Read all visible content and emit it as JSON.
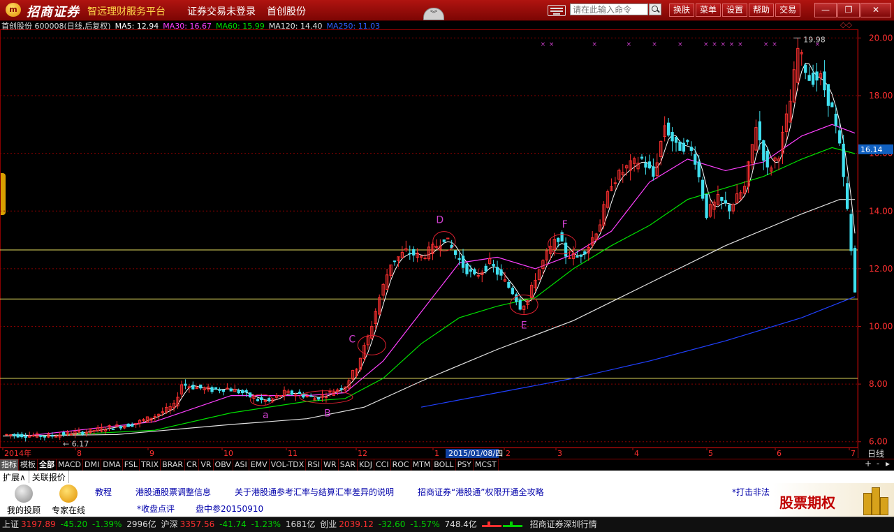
{
  "window": {
    "brand": "招商证券",
    "platform": "智远理财服务平台",
    "trade_status": "证券交易未登录",
    "stock_title": "首创股份",
    "command_placeholder": "请在此输入命令",
    "top_buttons": [
      "换肤",
      "菜单",
      "设置",
      "帮助",
      "交易"
    ],
    "win_min": "—",
    "win_restore": "❐",
    "win_close": "✕"
  },
  "info_line": {
    "stock": "首创股份 600008(日线,后复权)",
    "ma5": "MA5: 12.94",
    "ma30": "MA30: 16.67",
    "ma60": "MA60: 15.99",
    "ma120": "MA120: 14.40",
    "ma250": "MA250: 11.03"
  },
  "colors": {
    "up": "#ff3030",
    "down": "#40e0f0",
    "ma5": "#ffffff",
    "ma30": "#ff40ff",
    "ma60": "#00e000",
    "ma120": "#e0e0e0",
    "ma250": "#2040ff",
    "grid": "#880000",
    "annot": "#d040d0"
  },
  "chart_data": {
    "type": "candlestick",
    "y_range": [
      5.8,
      20.3
    ],
    "y_ticks": [
      "20.00",
      "18.00",
      "16.00",
      "14.00",
      "12.00",
      "10.00",
      "8.00",
      "6.00"
    ],
    "y_tick_values": [
      20,
      18,
      16,
      14,
      12,
      10,
      8,
      6
    ],
    "current_price": "16.14",
    "current_price_value": 16.14,
    "high_label": "19.98",
    "low_label": "6.17",
    "x_axis_labels": [
      "2014年",
      "8",
      "9",
      "10",
      "11",
      "12",
      "1",
      "2015/01/08/四",
      "2",
      "3",
      "4",
      "5",
      "6",
      "7"
    ],
    "period": "日线",
    "anchors": [
      [
        0,
        6.25
      ],
      [
        6,
        6.22
      ],
      [
        12,
        6.2
      ],
      [
        18,
        6.3
      ],
      [
        22,
        6.35
      ],
      [
        28,
        6.5
      ],
      [
        34,
        6.6
      ],
      [
        40,
        6.9
      ],
      [
        45,
        7.25
      ],
      [
        47,
        8.0
      ],
      [
        50,
        7.9
      ],
      [
        55,
        7.8
      ],
      [
        59,
        7.85
      ],
      [
        63,
        7.7
      ],
      [
        67,
        7.45
      ],
      [
        70,
        7.4
      ],
      [
        74,
        7.7
      ],
      [
        78,
        7.65
      ],
      [
        82,
        7.5
      ],
      [
        86,
        7.7
      ],
      [
        90,
        7.95
      ],
      [
        93,
        8.6
      ],
      [
        96,
        9.6
      ],
      [
        99,
        11.0
      ],
      [
        102,
        12.2
      ],
      [
        106,
        12.6
      ],
      [
        110,
        12.4
      ],
      [
        114,
        12.8
      ],
      [
        116,
        13.1
      ],
      [
        118,
        12.7
      ],
      [
        121,
        12.1
      ],
      [
        124,
        11.7
      ],
      [
        128,
        12.2
      ],
      [
        131,
        11.7
      ],
      [
        134,
        11.2
      ],
      [
        136,
        10.7
      ],
      [
        138,
        10.9
      ],
      [
        140,
        11.7
      ],
      [
        143,
        12.5
      ],
      [
        146,
        13.1
      ],
      [
        148,
        12.5
      ],
      [
        151,
        12.4
      ],
      [
        154,
        12.8
      ],
      [
        157,
        13.6
      ],
      [
        160,
        15.0
      ],
      [
        164,
        15.5
      ],
      [
        168,
        15.8
      ],
      [
        171,
        15.2
      ],
      [
        174,
        17.0
      ],
      [
        177,
        16.2
      ],
      [
        180,
        16.3
      ],
      [
        182,
        15.8
      ],
      [
        185,
        13.9
      ],
      [
        188,
        14.4
      ],
      [
        191,
        14.1
      ],
      [
        195,
        14.8
      ],
      [
        198,
        17.0
      ],
      [
        201,
        15.4
      ],
      [
        204,
        16.0
      ],
      [
        207,
        17.8
      ],
      [
        209,
        19.6
      ],
      [
        212,
        18.6
      ],
      [
        215,
        18.6
      ],
      [
        218,
        17.5
      ],
      [
        220,
        16.2
      ],
      [
        222,
        14.0
      ],
      [
        224,
        11.2
      ]
    ],
    "moving_averages": [
      {
        "name": "MA30",
        "points": [
          [
            6,
            6.2
          ],
          [
            40,
            6.7
          ],
          [
            60,
            7.6
          ],
          [
            80,
            7.6
          ],
          [
            90,
            7.7
          ],
          [
            100,
            8.8
          ],
          [
            110,
            10.5
          ],
          [
            120,
            12.2
          ],
          [
            130,
            12.4
          ],
          [
            140,
            12.0
          ],
          [
            150,
            12.5
          ],
          [
            160,
            13.3
          ],
          [
            170,
            15.0
          ],
          [
            180,
            15.8
          ],
          [
            190,
            15.4
          ],
          [
            200,
            15.7
          ],
          [
            210,
            16.6
          ],
          [
            218,
            17.0
          ],
          [
            224,
            16.7
          ]
        ]
      },
      {
        "name": "MA60",
        "points": [
          [
            10,
            6.2
          ],
          [
            40,
            6.4
          ],
          [
            60,
            7.0
          ],
          [
            80,
            7.4
          ],
          [
            90,
            7.5
          ],
          [
            100,
            8.2
          ],
          [
            110,
            9.4
          ],
          [
            120,
            10.3
          ],
          [
            130,
            10.7
          ],
          [
            140,
            11.0
          ],
          [
            150,
            12.0
          ],
          [
            160,
            12.8
          ],
          [
            170,
            13.5
          ],
          [
            180,
            14.4
          ],
          [
            190,
            14.8
          ],
          [
            200,
            15.2
          ],
          [
            210,
            15.8
          ],
          [
            218,
            16.2
          ],
          [
            224,
            15.99
          ]
        ]
      },
      {
        "name": "MA120",
        "points": [
          [
            0,
            6.2
          ],
          [
            30,
            6.25
          ],
          [
            60,
            6.6
          ],
          [
            80,
            6.8
          ],
          [
            95,
            7.2
          ],
          [
            110,
            8.1
          ],
          [
            130,
            9.2
          ],
          [
            150,
            10.2
          ],
          [
            170,
            11.5
          ],
          [
            190,
            12.8
          ],
          [
            210,
            13.9
          ],
          [
            220,
            14.4
          ],
          [
            224,
            14.4
          ]
        ]
      },
      {
        "name": "MA250",
        "points": [
          [
            110,
            7.2
          ],
          [
            130,
            7.7
          ],
          [
            150,
            8.2
          ],
          [
            170,
            8.8
          ],
          [
            190,
            9.5
          ],
          [
            210,
            10.3
          ],
          [
            224,
            11.03
          ]
        ]
      }
    ],
    "horizontal_lines": [
      12.65,
      10.95,
      8.2
    ],
    "annotations": [
      {
        "label": "D",
        "day": 116,
        "price": 12.95
      },
      {
        "label": "C",
        "day": 97,
        "price": 9.35
      },
      {
        "label": "F",
        "day": 147,
        "price": 12.85
      },
      {
        "label": "E",
        "day": 137,
        "price": 10.75
      },
      {
        "label": "a",
        "day": 68,
        "price": 7.45
      },
      {
        "label": "B",
        "day": 85,
        "price": 7.55
      }
    ]
  },
  "indicator_tabs": [
    "指标",
    "模板",
    "全部",
    "MACD",
    "DMI",
    "DMA",
    "FSL",
    "TRIX",
    "BRAR",
    "CR",
    "VR",
    "OBV",
    "ASI",
    "EMV",
    "VOL-TDX",
    "RSI",
    "WR",
    "SAR",
    "KDJ",
    "CCI",
    "ROC",
    "MTM",
    "BOLL",
    "PSY",
    "MCST"
  ],
  "tab_right": [
    "+",
    "-",
    "▸"
  ],
  "expand_tabs": [
    "扩展∧",
    "关联报价"
  ],
  "bottom_panel": {
    "avatar1": "我的投顾",
    "avatar2": "专家在线",
    "news_row1": [
      "教程",
      "港股通股票调整信息",
      "关于港股通参考汇率与结算汇率差异的说明",
      "招商证券“港股通”权限开通全攻略"
    ],
    "news_row2": [
      "*收盘点评",
      "盘中参20150910"
    ],
    "news_right": "*打击非法",
    "ad_text": "股票期权"
  },
  "status_bar": {
    "sh_label": "上证",
    "sh_value": "3197.89",
    "sh_change": "-45.20",
    "sh_pct": "-1.39%",
    "sh_amount": "2996亿",
    "hs_label": "沪深",
    "hs_value": "3357.56",
    "hs_change": "-41.74",
    "hs_pct": "-1.23%",
    "hs_amount": "1681亿",
    "cy_label": "创业",
    "cy_value": "2039.12",
    "cy_change": "-32.60",
    "cy_pct": "-1.57%",
    "cy_amount": "748.4亿",
    "right_text": "招商证券深圳行情"
  }
}
